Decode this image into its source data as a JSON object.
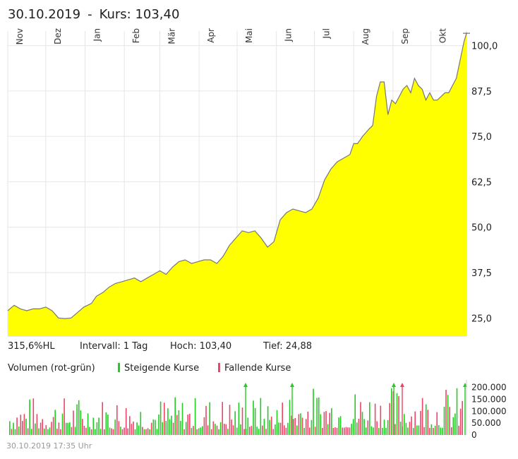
{
  "header": {
    "date": "30.10.2019",
    "separator": "-",
    "price_label": "Kurs: 103,40"
  },
  "stats": {
    "performance": "315,6%HL",
    "interval": "Intervall: 1 Tag",
    "high": "Hoch:  103,40",
    "low": "Tief:   24,88"
  },
  "volume_legend": {
    "title": "Volumen (rot-grün)",
    "rising": "Steigende Kurse",
    "falling": "Fallende Kurse",
    "rising_color": "#22cc22",
    "falling_color": "#ee4466"
  },
  "footer": {
    "timestamp": "30.10.2019 17:35 Uhr"
  },
  "colors": {
    "area_fill": "#ffff00",
    "line": "#777777",
    "grid": "#e6e6e6"
  },
  "chart_data": [
    {
      "type": "area",
      "months": [
        "Nov",
        "Dez",
        "Jan",
        "Feb",
        "Mär",
        "Apr",
        "Mai",
        "Jun",
        "Jul",
        "Aug",
        "Sep",
        "Okt"
      ],
      "yticks": [
        "100,0",
        "87,5",
        "75,0",
        "62,5",
        "50,0",
        "37,5",
        "25,0"
      ],
      "ylim": [
        20,
        104
      ],
      "x_day": [
        0,
        5,
        10,
        15,
        20,
        25,
        30,
        35,
        40,
        45,
        50,
        55,
        60,
        63,
        66,
        70,
        75,
        80,
        85,
        90,
        95,
        100,
        105,
        110,
        115,
        120,
        125,
        130,
        135,
        140,
        145,
        150,
        155,
        160,
        165,
        170,
        175,
        180,
        185,
        190,
        195,
        200,
        205,
        210,
        215,
        220,
        225,
        230,
        235,
        240,
        245,
        250,
        255,
        260,
        265,
        270,
        273,
        276,
        280,
        285,
        288,
        291,
        294,
        297,
        300,
        303,
        306,
        309,
        312,
        315,
        318,
        321,
        324,
        327,
        330,
        333,
        336,
        339,
        342,
        345,
        348,
        351,
        354,
        357,
        360,
        362
      ],
      "close": [
        27,
        28.5,
        27.5,
        27,
        27.5,
        27.5,
        28,
        27,
        25,
        24.8,
        25,
        26.5,
        28,
        28.5,
        29,
        31,
        32,
        33.5,
        34.5,
        35,
        35.5,
        36,
        35,
        36,
        37,
        38,
        37,
        39,
        40.5,
        41,
        40,
        40.5,
        41,
        41,
        40,
        42,
        45,
        47,
        49,
        48.5,
        49,
        47,
        44.5,
        46,
        52,
        54,
        55,
        54.5,
        54,
        55,
        58,
        63,
        66,
        68,
        69,
        70,
        73,
        73,
        75,
        77,
        78,
        86,
        90,
        90,
        81,
        85,
        84,
        86,
        88,
        89,
        87,
        91,
        89,
        88,
        85,
        87,
        85,
        85,
        86,
        87,
        87,
        89,
        91,
        96,
        101,
        103.4
      ],
      "volume_ylim": [
        0,
        220000
      ],
      "volume_yticks": [
        "200.000",
        "150.000",
        "100.000",
        "50.000",
        "0"
      ]
    }
  ]
}
